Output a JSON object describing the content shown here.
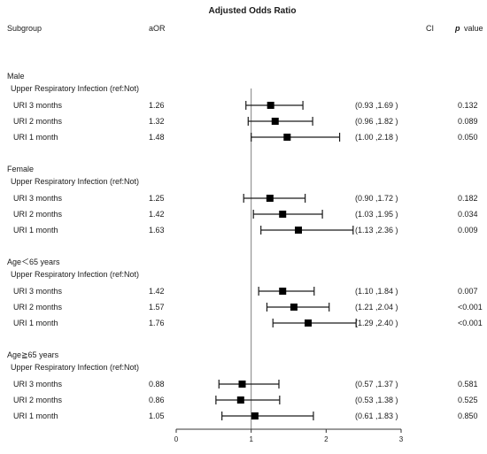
{
  "chart_data": {
    "type": "forest",
    "title": "Adjusted Odds Ratio",
    "header": {
      "subgroup": "Subgroup",
      "aor": "aOR",
      "ci": "CI",
      "p_symbol": "p",
      "p_word": "value"
    },
    "xlim": [
      0,
      3
    ],
    "x_ticks": [
      0,
      1,
      2,
      3
    ],
    "x_tick_labels": [
      "0",
      "1",
      "2",
      "3"
    ],
    "reference_line": 1,
    "marker": "square",
    "groups": [
      {
        "label": "Male",
        "sublabel": "Upper Respiratory Infection (ref:Not)",
        "rows": [
          {
            "label": "URI 3 months",
            "aor_text": "1.26",
            "aor": 1.26,
            "lo": 0.93,
            "hi": 1.69,
            "ci_text": "(0.93 ,1.69 )",
            "p": "0.132"
          },
          {
            "label": "URI 2 months",
            "aor_text": "1.32",
            "aor": 1.32,
            "lo": 0.96,
            "hi": 1.82,
            "ci_text": "(0.96 ,1.82 )",
            "p": "0.089"
          },
          {
            "label": "URI 1 month",
            "aor_text": "1.48",
            "aor": 1.48,
            "lo": 1.0,
            "hi": 2.18,
            "ci_text": "(1.00 ,2.18 )",
            "p": "0.050"
          }
        ]
      },
      {
        "label": "Female",
        "sublabel": "Upper Respiratory Infection (ref:Not)",
        "rows": [
          {
            "label": "URI 3 months",
            "aor_text": "1.25",
            "aor": 1.25,
            "lo": 0.9,
            "hi": 1.72,
            "ci_text": "(0.90 ,1.72 )",
            "p": "0.182"
          },
          {
            "label": "URI 2 months",
            "aor_text": "1.42",
            "aor": 1.42,
            "lo": 1.03,
            "hi": 1.95,
            "ci_text": "(1.03 ,1.95 )",
            "p": "0.034"
          },
          {
            "label": "URI 1 month",
            "aor_text": "1.63",
            "aor": 1.63,
            "lo": 1.13,
            "hi": 2.36,
            "ci_text": "(1.13 ,2.36 )",
            "p": "0.009"
          }
        ]
      },
      {
        "label": "Age＜65 years",
        "sublabel": "Upper Respiratory Infection (ref:Not)",
        "rows": [
          {
            "label": "URI 3 months",
            "aor_text": "1.42",
            "aor": 1.42,
            "lo": 1.1,
            "hi": 1.84,
            "ci_text": "(1.10 ,1.84 )",
            "p": "0.007"
          },
          {
            "label": "URI 2 months",
            "aor_text": "1.57",
            "aor": 1.57,
            "lo": 1.21,
            "hi": 2.04,
            "ci_text": "(1.21 ,2.04 )",
            "p": "<0.001"
          },
          {
            "label": "URI 1 month",
            "aor_text": "1.76",
            "aor": 1.76,
            "lo": 1.29,
            "hi": 2.4,
            "ci_text": "(1.29 ,2.40 )",
            "p": "<0.001"
          }
        ]
      },
      {
        "label": "Age≧65 years",
        "sublabel": "Upper Respiratory Infection (ref:Not)",
        "rows": [
          {
            "label": "URI 3 months",
            "aor_text": "0.88",
            "aor": 0.88,
            "lo": 0.57,
            "hi": 1.37,
            "ci_text": "(0.57 ,1.37 )",
            "p": "0.581"
          },
          {
            "label": "URI 2 months",
            "aor_text": "0.86",
            "aor": 0.86,
            "lo": 0.53,
            "hi": 1.38,
            "ci_text": "(0.53 ,1.38 )",
            "p": "0.525"
          },
          {
            "label": "URI 1 month",
            "aor_text": "1.05",
            "aor": 1.05,
            "lo": 0.61,
            "hi": 1.83,
            "ci_text": "(0.61 ,1.83 )",
            "p": "0.850"
          }
        ]
      }
    ]
  }
}
